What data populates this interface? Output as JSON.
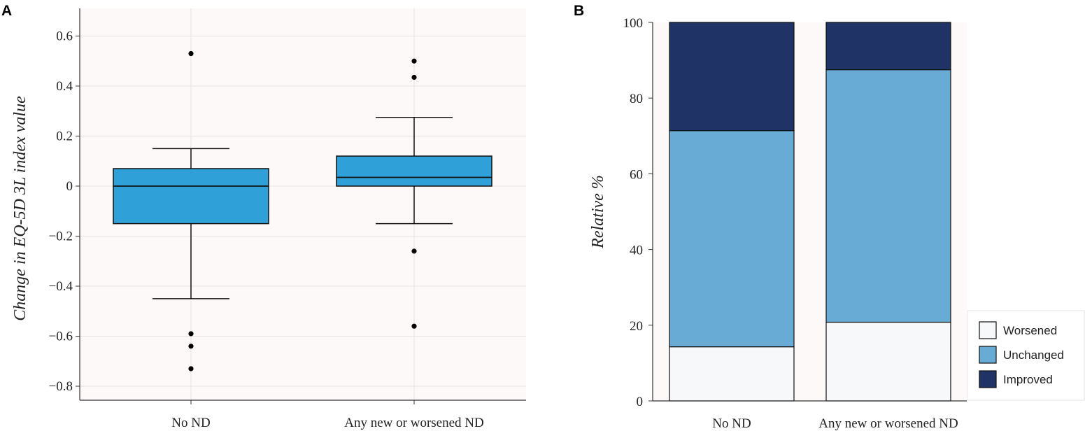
{
  "panels": {
    "a_label": "A",
    "b_label": "B"
  },
  "chart_data": [
    {
      "type": "box",
      "ylabel": "Change in EQ-5D 3L index value",
      "xlabel": "",
      "ylim": [
        -0.85,
        0.65
      ],
      "yticks": [
        0.6,
        0.4,
        0.2,
        0,
        -0.2,
        -0.4,
        -0.6,
        -0.8
      ],
      "ytick_labels": [
        "0.6",
        "0.4",
        "0.2",
        "0",
        "−0.2",
        "−0.4",
        "−0.6",
        "−0.8"
      ],
      "categories": [
        "No ND",
        "Any new or worsened ND"
      ],
      "boxes": [
        {
          "name": "No ND",
          "q1": -0.15,
          "median": 0.0,
          "q3": 0.07,
          "whisker_low": -0.45,
          "whisker_high": 0.15,
          "outliers": [
            0.53,
            -0.59,
            -0.64,
            -0.73
          ]
        },
        {
          "name": "Any new or worsened ND",
          "q1": 0.0,
          "median": 0.035,
          "q3": 0.12,
          "whisker_low": -0.15,
          "whisker_high": 0.275,
          "outliers": [
            0.5,
            0.435,
            -0.26,
            -0.56
          ]
        }
      ],
      "colors": {
        "box": "#2fa0d8",
        "background": "#fdf9f8",
        "grid": "#e6e2e2"
      }
    },
    {
      "type": "stacked_bar",
      "ylabel": "Relative %",
      "xlabel": "",
      "ylim": [
        0,
        100
      ],
      "yticks": [
        0,
        20,
        40,
        60,
        80,
        100
      ],
      "ytick_labels": [
        "0",
        "20",
        "40",
        "60",
        "80",
        "100"
      ],
      "categories": [
        "No ND",
        "Any new or worsened ND"
      ],
      "series": [
        {
          "name": "Worsened",
          "color": "#f7f8fa",
          "values": [
            14.3,
            20.8
          ]
        },
        {
          "name": "Unchanged",
          "color": "#68acd6",
          "values": [
            57.1,
            66.7
          ]
        },
        {
          "name": "Improved",
          "color": "#1f3366",
          "values": [
            28.6,
            12.5
          ]
        }
      ],
      "legend": "bottom-right",
      "colors": {
        "background": "#fdf9f8"
      }
    }
  ]
}
